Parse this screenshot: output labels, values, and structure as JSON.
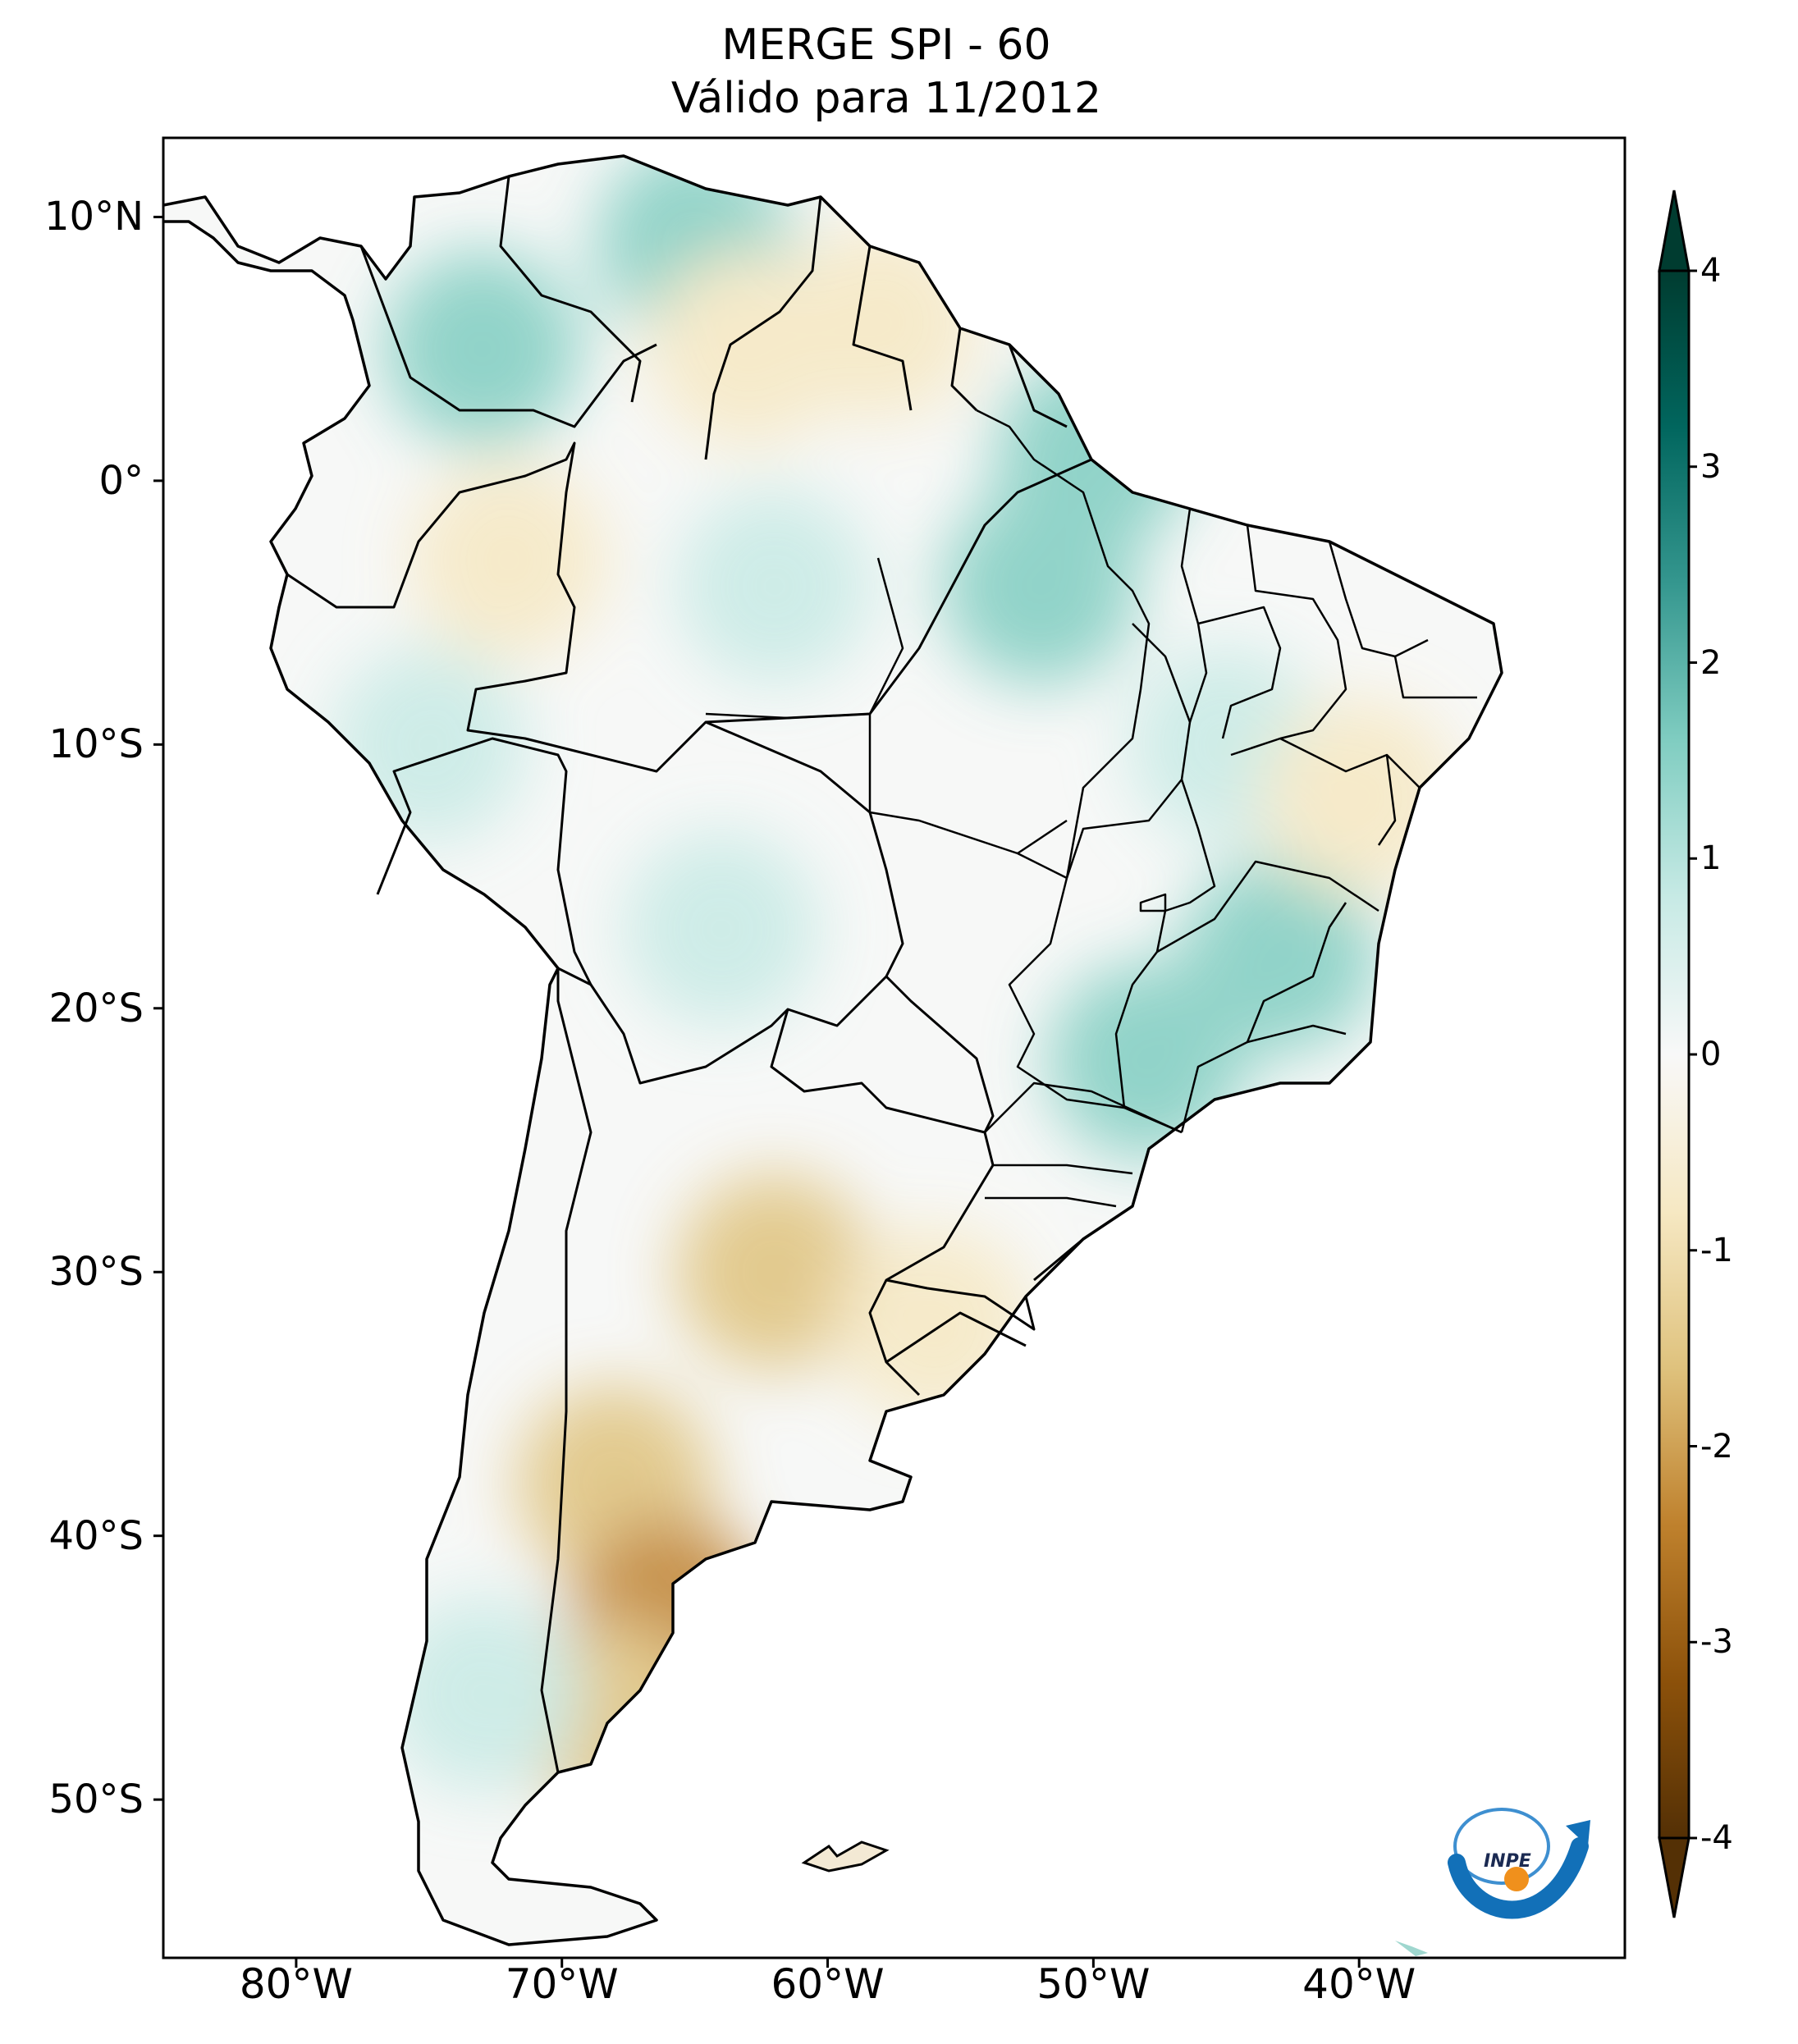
{
  "title": {
    "line1": "MERGE   SPI - 60",
    "line2": "Válido para 11/2012"
  },
  "map": {
    "region": "South America",
    "projection": "plate-carree",
    "lon_range": [
      -85,
      -30
    ],
    "lat_range": [
      -56,
      13
    ],
    "lat_ticks": [
      {
        "value": 10,
        "label": "10°N"
      },
      {
        "value": 0,
        "label": "0°"
      },
      {
        "value": -10,
        "label": "10°S"
      },
      {
        "value": -20,
        "label": "20°S"
      },
      {
        "value": -30,
        "label": "30°S"
      },
      {
        "value": -40,
        "label": "40°S"
      },
      {
        "value": -50,
        "label": "50°S"
      }
    ],
    "lon_ticks": [
      {
        "value": -80,
        "label": "80°W"
      },
      {
        "value": -70,
        "label": "70°W"
      },
      {
        "value": -60,
        "label": "60°W"
      },
      {
        "value": -50,
        "label": "50°W"
      },
      {
        "value": -40,
        "label": "40°W"
      }
    ],
    "field_patches": [
      {
        "lon": -73,
        "lat": 5,
        "value": 1.6
      },
      {
        "lon": -65,
        "lat": 9,
        "value": 1.2
      },
      {
        "lon": -63,
        "lat": 5,
        "value": -1.1
      },
      {
        "lon": -58,
        "lat": 6,
        "value": -1.0
      },
      {
        "lon": -72,
        "lat": -3,
        "value": -1.2
      },
      {
        "lon": -62,
        "lat": -4,
        "value": 1.0
      },
      {
        "lon": -52,
        "lat": -4,
        "value": 1.2
      },
      {
        "lon": -50,
        "lat": 1,
        "value": 1.4
      },
      {
        "lon": -45,
        "lat": -10,
        "value": 1.1
      },
      {
        "lon": -43,
        "lat": -18,
        "value": 1.3
      },
      {
        "lon": -48,
        "lat": -22,
        "value": 1.2
      },
      {
        "lon": -75,
        "lat": -10,
        "value": 1.0
      },
      {
        "lon": -64,
        "lat": -17,
        "value": 0.8
      },
      {
        "lon": -40,
        "lat": -12,
        "value": -0.9
      },
      {
        "lon": -62,
        "lat": -30,
        "value": -1.5
      },
      {
        "lon": -56,
        "lat": -32,
        "value": -0.9
      },
      {
        "lon": -68,
        "lat": -38,
        "value": -1.6
      },
      {
        "lon": -66,
        "lat": -43,
        "value": -2.6
      },
      {
        "lon": -68,
        "lat": -47,
        "value": -1.4
      },
      {
        "lon": -73,
        "lat": -46,
        "value": 0.6
      }
    ],
    "logo_text": "INPE"
  },
  "colorbar": {
    "type": "BrBG",
    "range": [
      -4,
      4
    ],
    "extend": "both",
    "ticks": [
      {
        "value": 4,
        "label": "4"
      },
      {
        "value": 3,
        "label": "3"
      },
      {
        "value": 2,
        "label": "2"
      },
      {
        "value": 1,
        "label": "1"
      },
      {
        "value": 0,
        "label": "0"
      },
      {
        "value": -1,
        "label": "-1"
      },
      {
        "value": -2,
        "label": "-2"
      },
      {
        "value": -3,
        "label": "-3"
      },
      {
        "value": -4,
        "label": "-4"
      }
    ],
    "colors": [
      "#543005",
      "#8c510a",
      "#bf812d",
      "#dfc27d",
      "#f6e8c3",
      "#f5f5f5",
      "#c7eae5",
      "#80cdc1",
      "#35978f",
      "#01665e",
      "#003c30"
    ]
  }
}
